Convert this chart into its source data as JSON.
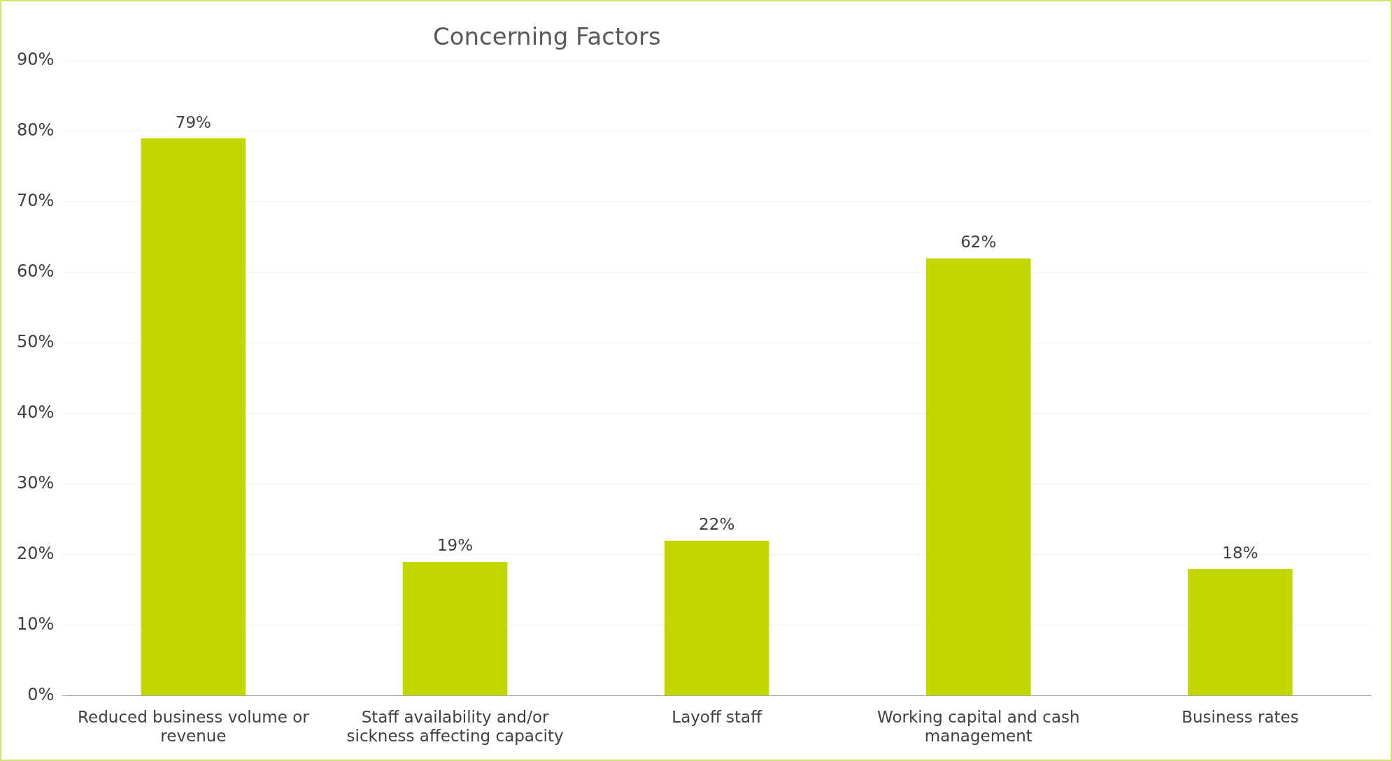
{
  "chart_data": {
    "type": "bar",
    "title": "Concerning Factors",
    "categories": [
      "Reduced business volume or revenue",
      "Staff availability and/or sickness affecting capacity",
      "Layoff staff",
      "Working capital and cash management",
      "Business rates"
    ],
    "values": [
      79,
      19,
      22,
      62,
      18
    ],
    "color": "#c4d600",
    "ylim": [
      0,
      90
    ],
    "yticks": [
      {
        "value": 0,
        "label": "0%"
      },
      {
        "value": 10,
        "label": "10%"
      },
      {
        "value": 20,
        "label": "20%"
      },
      {
        "value": 30,
        "label": "30%"
      },
      {
        "value": 40,
        "label": "40%"
      },
      {
        "value": 50,
        "label": "50%"
      },
      {
        "value": 60,
        "label": "60%"
      },
      {
        "value": 70,
        "label": "70%"
      },
      {
        "value": 80,
        "label": "80%"
      },
      {
        "value": 90,
        "label": "90%"
      }
    ],
    "grid": "y",
    "legend": false,
    "value_labels": [
      "79%",
      "19%",
      "22%",
      "62%",
      "18%"
    ]
  }
}
